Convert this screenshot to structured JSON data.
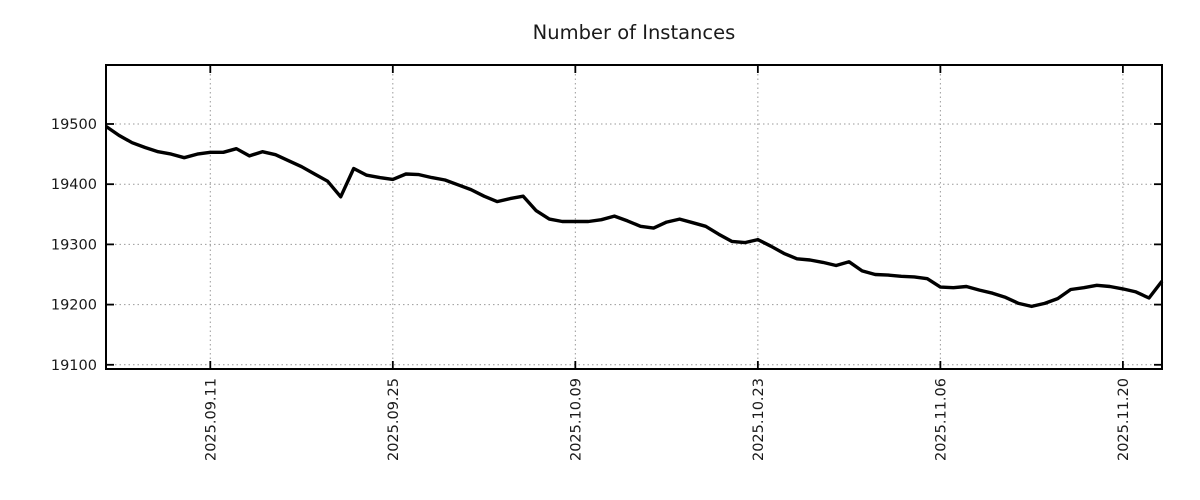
{
  "chart_data": {
    "type": "line",
    "title": "Number of Instances",
    "xlabel": "",
    "ylabel": "",
    "legend_position": "none",
    "grid": true,
    "grid_style": "dotted",
    "line_color": "#000000",
    "grid_color": "#9a9a9a",
    "border_color": "#000000",
    "background_color": "#ffffff",
    "ylim": [
      19093,
      19598
    ],
    "y_ticks": [
      19100,
      19200,
      19300,
      19400,
      19500
    ],
    "y_tick_labels": [
      "19100",
      "19200",
      "19300",
      "19400",
      "19500"
    ],
    "x_tick_labels": [
      "2025.09.11",
      "2025.09.25",
      "2025.10.09",
      "2025.10.23",
      "2025.11.06",
      "2025.11.20"
    ],
    "x_tick_indices": [
      8,
      22,
      36,
      50,
      64,
      78
    ],
    "x_dates": [
      "2025.09.03",
      "2025.09.04",
      "2025.09.05",
      "2025.09.06",
      "2025.09.07",
      "2025.09.08",
      "2025.09.09",
      "2025.09.10",
      "2025.09.11",
      "2025.09.12",
      "2025.09.13",
      "2025.09.14",
      "2025.09.15",
      "2025.09.16",
      "2025.09.17",
      "2025.09.18",
      "2025.09.19",
      "2025.09.20",
      "2025.09.21",
      "2025.09.22",
      "2025.09.23",
      "2025.09.24",
      "2025.09.25",
      "2025.09.26",
      "2025.09.27",
      "2025.09.28",
      "2025.09.29",
      "2025.09.30",
      "2025.10.01",
      "2025.10.02",
      "2025.10.03",
      "2025.10.04",
      "2025.10.05",
      "2025.10.06",
      "2025.10.07",
      "2025.10.08",
      "2025.10.09",
      "2025.10.10",
      "2025.10.11",
      "2025.10.12",
      "2025.10.13",
      "2025.10.14",
      "2025.10.15",
      "2025.10.16",
      "2025.10.17",
      "2025.10.18",
      "2025.10.19",
      "2025.10.20",
      "2025.10.21",
      "2025.10.22",
      "2025.10.23",
      "2025.10.24",
      "2025.10.25",
      "2025.10.26",
      "2025.10.27",
      "2025.10.28",
      "2025.10.29",
      "2025.10.30",
      "2025.10.31",
      "2025.11.01",
      "2025.11.02",
      "2025.11.03",
      "2025.11.04",
      "2025.11.05",
      "2025.11.06",
      "2025.11.07",
      "2025.11.08",
      "2025.11.09",
      "2025.11.10",
      "2025.11.11",
      "2025.11.12",
      "2025.11.13",
      "2025.11.14",
      "2025.11.15",
      "2025.11.16",
      "2025.11.17",
      "2025.11.18",
      "2025.11.19",
      "2025.11.20",
      "2025.11.21",
      "2025.11.22",
      "2025.11.23"
    ],
    "values": [
      19496,
      19481,
      19469,
      19461,
      19454,
      19450,
      19444,
      19450,
      19453,
      19453,
      19459,
      19447,
      19454,
      19449,
      19439,
      19429,
      19417,
      19405,
      19379,
      19426,
      19415,
      19411,
      19408,
      19417,
      19416,
      19411,
      19407,
      19399,
      19391,
      19380,
      19371,
      19376,
      19380,
      19356,
      19342,
      19338,
      19338,
      19338,
      19341,
      19347,
      19339,
      19330,
      19327,
      19337,
      19342,
      19336,
      19330,
      19317,
      19305,
      19303,
      19308,
      19297,
      19285,
      19276,
      19274,
      19270,
      19265,
      19271,
      19256,
      19250,
      19249,
      19247,
      19246,
      19243,
      19229,
      19228,
      19230,
      19224,
      19219,
      19212,
      19202,
      19197,
      19202,
      19210,
      19225,
      19228,
      19232,
      19230,
      19226,
      19221,
      19211,
      19239
    ]
  }
}
